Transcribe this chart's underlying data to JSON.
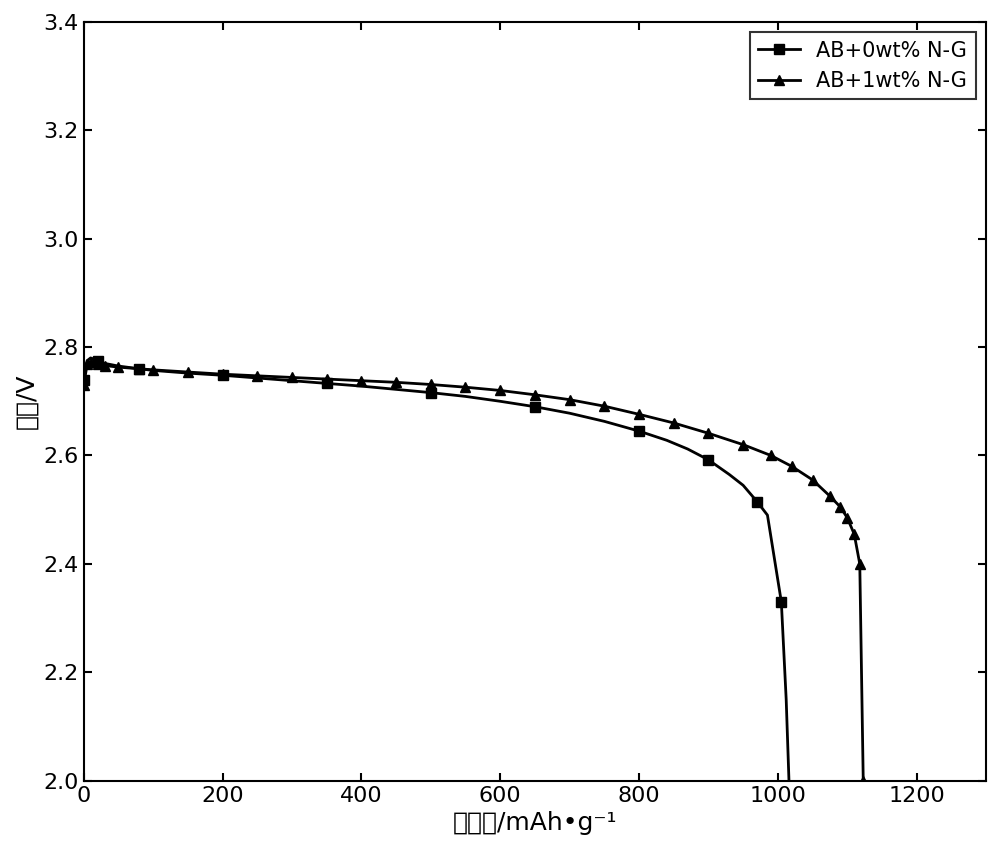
{
  "title": "",
  "xlabel": "比容量/mAh•g⁻¹",
  "ylabel": "电压/V",
  "xlim": [
    0,
    1300
  ],
  "ylim": [
    2.0,
    3.4
  ],
  "xticks": [
    0,
    200,
    400,
    600,
    800,
    1000,
    1200
  ],
  "yticks": [
    2.0,
    2.2,
    2.4,
    2.6,
    2.8,
    3.0,
    3.2,
    3.4
  ],
  "background_color": "#ffffff",
  "line_color": "#000000",
  "series": [
    {
      "label": "AB+0wt% N-G",
      "marker": "s",
      "x": [
        0,
        5,
        10,
        20,
        30,
        50,
        80,
        100,
        150,
        200,
        250,
        300,
        350,
        400,
        450,
        500,
        550,
        600,
        650,
        700,
        750,
        800,
        840,
        870,
        900,
        930,
        950,
        970,
        985,
        995,
        1005,
        1012,
        1016
      ],
      "y": [
        2.74,
        2.775,
        2.78,
        2.775,
        2.77,
        2.765,
        2.76,
        2.757,
        2.752,
        2.748,
        2.743,
        2.738,
        2.733,
        2.728,
        2.722,
        2.716,
        2.709,
        2.7,
        2.69,
        2.678,
        2.663,
        2.645,
        2.628,
        2.612,
        2.592,
        2.565,
        2.545,
        2.515,
        2.49,
        2.41,
        2.33,
        2.15,
        2.0
      ]
    },
    {
      "label": "AB+1wt% N-G",
      "marker": "^",
      "x": [
        0,
        5,
        10,
        20,
        30,
        50,
        80,
        100,
        150,
        200,
        250,
        300,
        350,
        400,
        450,
        500,
        550,
        600,
        650,
        700,
        750,
        800,
        850,
        900,
        950,
        990,
        1020,
        1050,
        1075,
        1090,
        1100,
        1110,
        1118,
        1123
      ],
      "y": [
        2.73,
        2.768,
        2.772,
        2.768,
        2.766,
        2.763,
        2.76,
        2.758,
        2.754,
        2.75,
        2.747,
        2.744,
        2.741,
        2.738,
        2.735,
        2.731,
        2.726,
        2.72,
        2.712,
        2.703,
        2.691,
        2.676,
        2.66,
        2.641,
        2.62,
        2.6,
        2.58,
        2.555,
        2.525,
        2.505,
        2.485,
        2.455,
        2.4,
        2.0
      ]
    }
  ],
  "markersize": 7,
  "linewidth": 2.0,
  "markevery_series0": 3,
  "markevery_series1": 1,
  "legend_loc": "upper right",
  "legend_fontsize": 15,
  "tick_labelsize": 16,
  "axis_labelsize": 18,
  "figsize": [
    10.0,
    8.49
  ],
  "dpi": 100
}
